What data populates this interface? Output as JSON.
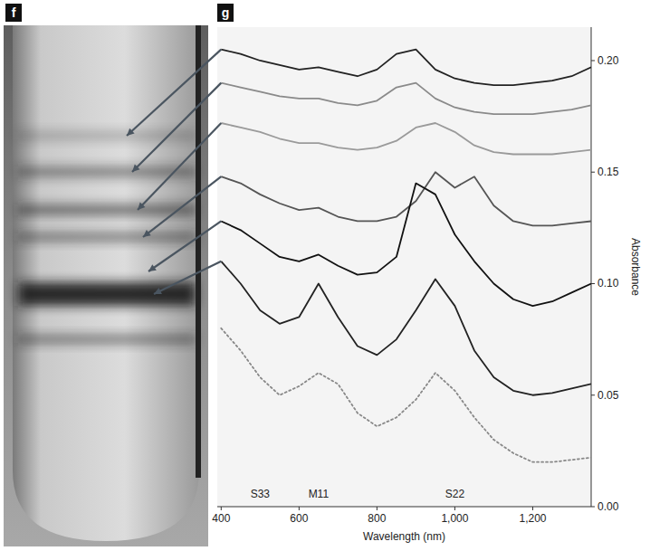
{
  "chart_data": {
    "type": "line",
    "panel_labels": [
      "f",
      "g"
    ],
    "xlabel": "Wavelength (nm)",
    "ylabel": "Absorbance",
    "x": [
      400,
      450,
      500,
      550,
      600,
      650,
      700,
      750,
      800,
      850,
      900,
      950,
      1000,
      1050,
      1100,
      1150,
      1200,
      1250,
      1300,
      1350
    ],
    "series": [
      {
        "color": "#222222",
        "line_style": "solid",
        "values": [
          0.205,
          0.203,
          0.2,
          0.198,
          0.196,
          0.197,
          0.195,
          0.193,
          0.196,
          0.203,
          0.205,
          0.196,
          0.192,
          0.19,
          0.189,
          0.189,
          0.19,
          0.191,
          0.193,
          0.197
        ]
      },
      {
        "color": "#8a8a8a",
        "line_style": "solid",
        "values": [
          0.19,
          0.188,
          0.186,
          0.184,
          0.183,
          0.183,
          0.181,
          0.18,
          0.182,
          0.188,
          0.19,
          0.183,
          0.179,
          0.177,
          0.176,
          0.176,
          0.176,
          0.177,
          0.178,
          0.18
        ]
      },
      {
        "color": "#9a9a9a",
        "line_style": "solid",
        "values": [
          0.172,
          0.17,
          0.168,
          0.165,
          0.163,
          0.163,
          0.161,
          0.16,
          0.161,
          0.164,
          0.17,
          0.172,
          0.168,
          0.162,
          0.159,
          0.158,
          0.158,
          0.158,
          0.159,
          0.16
        ]
      },
      {
        "color": "#555555",
        "line_style": "solid",
        "values": [
          0.148,
          0.145,
          0.14,
          0.136,
          0.133,
          0.134,
          0.13,
          0.128,
          0.128,
          0.13,
          0.137,
          0.15,
          0.143,
          0.148,
          0.135,
          0.128,
          0.126,
          0.126,
          0.127,
          0.128
        ]
      },
      {
        "color": "#111111",
        "line_style": "solid",
        "values": [
          0.128,
          0.124,
          0.118,
          0.112,
          0.11,
          0.113,
          0.108,
          0.104,
          0.105,
          0.112,
          0.145,
          0.14,
          0.122,
          0.11,
          0.1,
          0.093,
          0.09,
          0.092,
          0.096,
          0.1
        ]
      },
      {
        "color": "#222222",
        "line_style": "solid",
        "values": [
          0.11,
          0.1,
          0.088,
          0.082,
          0.085,
          0.1,
          0.085,
          0.072,
          0.068,
          0.075,
          0.088,
          0.102,
          0.09,
          0.07,
          0.058,
          0.052,
          0.05,
          0.051,
          0.053,
          0.055
        ]
      },
      {
        "color": "#888888",
        "line_style": "dotted",
        "values": [
          0.08,
          0.07,
          0.058,
          0.05,
          0.054,
          0.06,
          0.055,
          0.042,
          0.036,
          0.04,
          0.048,
          0.06,
          0.052,
          0.04,
          0.03,
          0.024,
          0.02,
          0.02,
          0.021,
          0.022
        ]
      }
    ],
    "xlim": [
      390,
      1350
    ],
    "xticks": [
      400,
      600,
      800,
      {
        "value": 1000,
        "label": "1,000"
      },
      {
        "value": 1200,
        "label": "1,200"
      }
    ],
    "ylim": [
      0,
      0.215
    ],
    "yticks": [
      {
        "value": 0,
        "label": "0.00"
      },
      0.05,
      {
        "value": 0.1,
        "label": "0.10"
      },
      0.15,
      {
        "value": 0.2,
        "label": "0.20"
      }
    ],
    "annotations": [
      {
        "text": "S33",
        "x": 500
      },
      {
        "text": "M11",
        "x": 650
      },
      {
        "text": "S22",
        "x": 1000
      }
    ],
    "grid": false
  }
}
